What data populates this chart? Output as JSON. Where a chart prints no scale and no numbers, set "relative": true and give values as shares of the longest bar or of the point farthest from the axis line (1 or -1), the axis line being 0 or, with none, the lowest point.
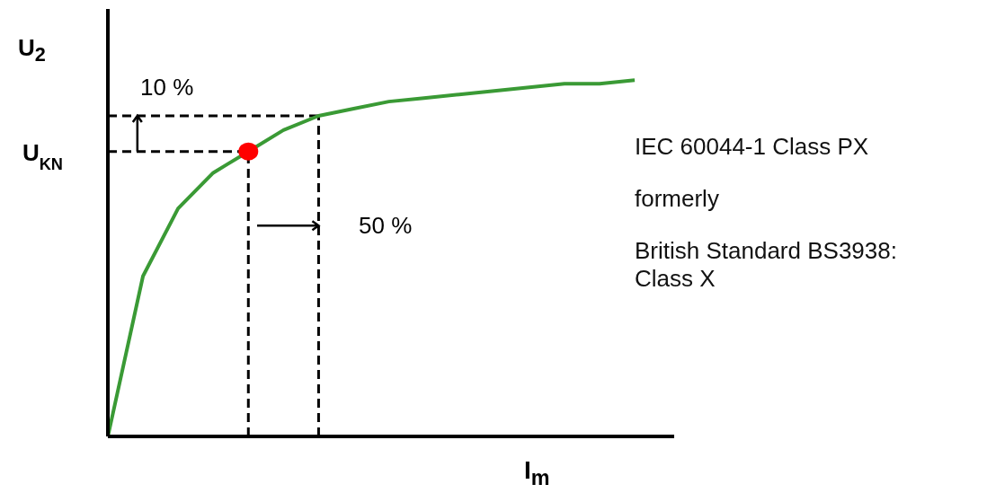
{
  "chart_data": {
    "type": "line",
    "relative": true,
    "xlabel": "I$_{m}$",
    "ylabel": "U$_{2}$",
    "categories": [
      null,
      null,
      null,
      null,
      null,
      null,
      null,
      null,
      null,
      null,
      null,
      null,
      null,
      null,
      null,
      null
    ],
    "series": [
      {
        "color": "#3a9a35",
        "values": [
          0,
          0.45,
          0.64,
          0.74,
          0.8,
          0.86,
          0.9,
          0.92,
          0.94,
          0.95,
          0.96,
          0.97,
          0.98,
          0.99,
          0.99,
          1
        ]
      }
    ],
    "marker": "none",
    "line_style": "solid",
    "ref_lines": [
      {
        "axis": "y",
        "value": 0.8,
        "label": "U$_{KN}$",
        "line_style": "dashed",
        "color": "#000000"
      },
      {
        "axis": "y",
        "value": 0.9,
        "label": null,
        "line_style": "dashed",
        "color": "#000000"
      }
    ],
    "annotations": [
      "10 %",
      "50 %",
      "IEC 60044-1 Class PX",
      "formerly",
      "British Standard BS3938: Class X"
    ]
  }
}
